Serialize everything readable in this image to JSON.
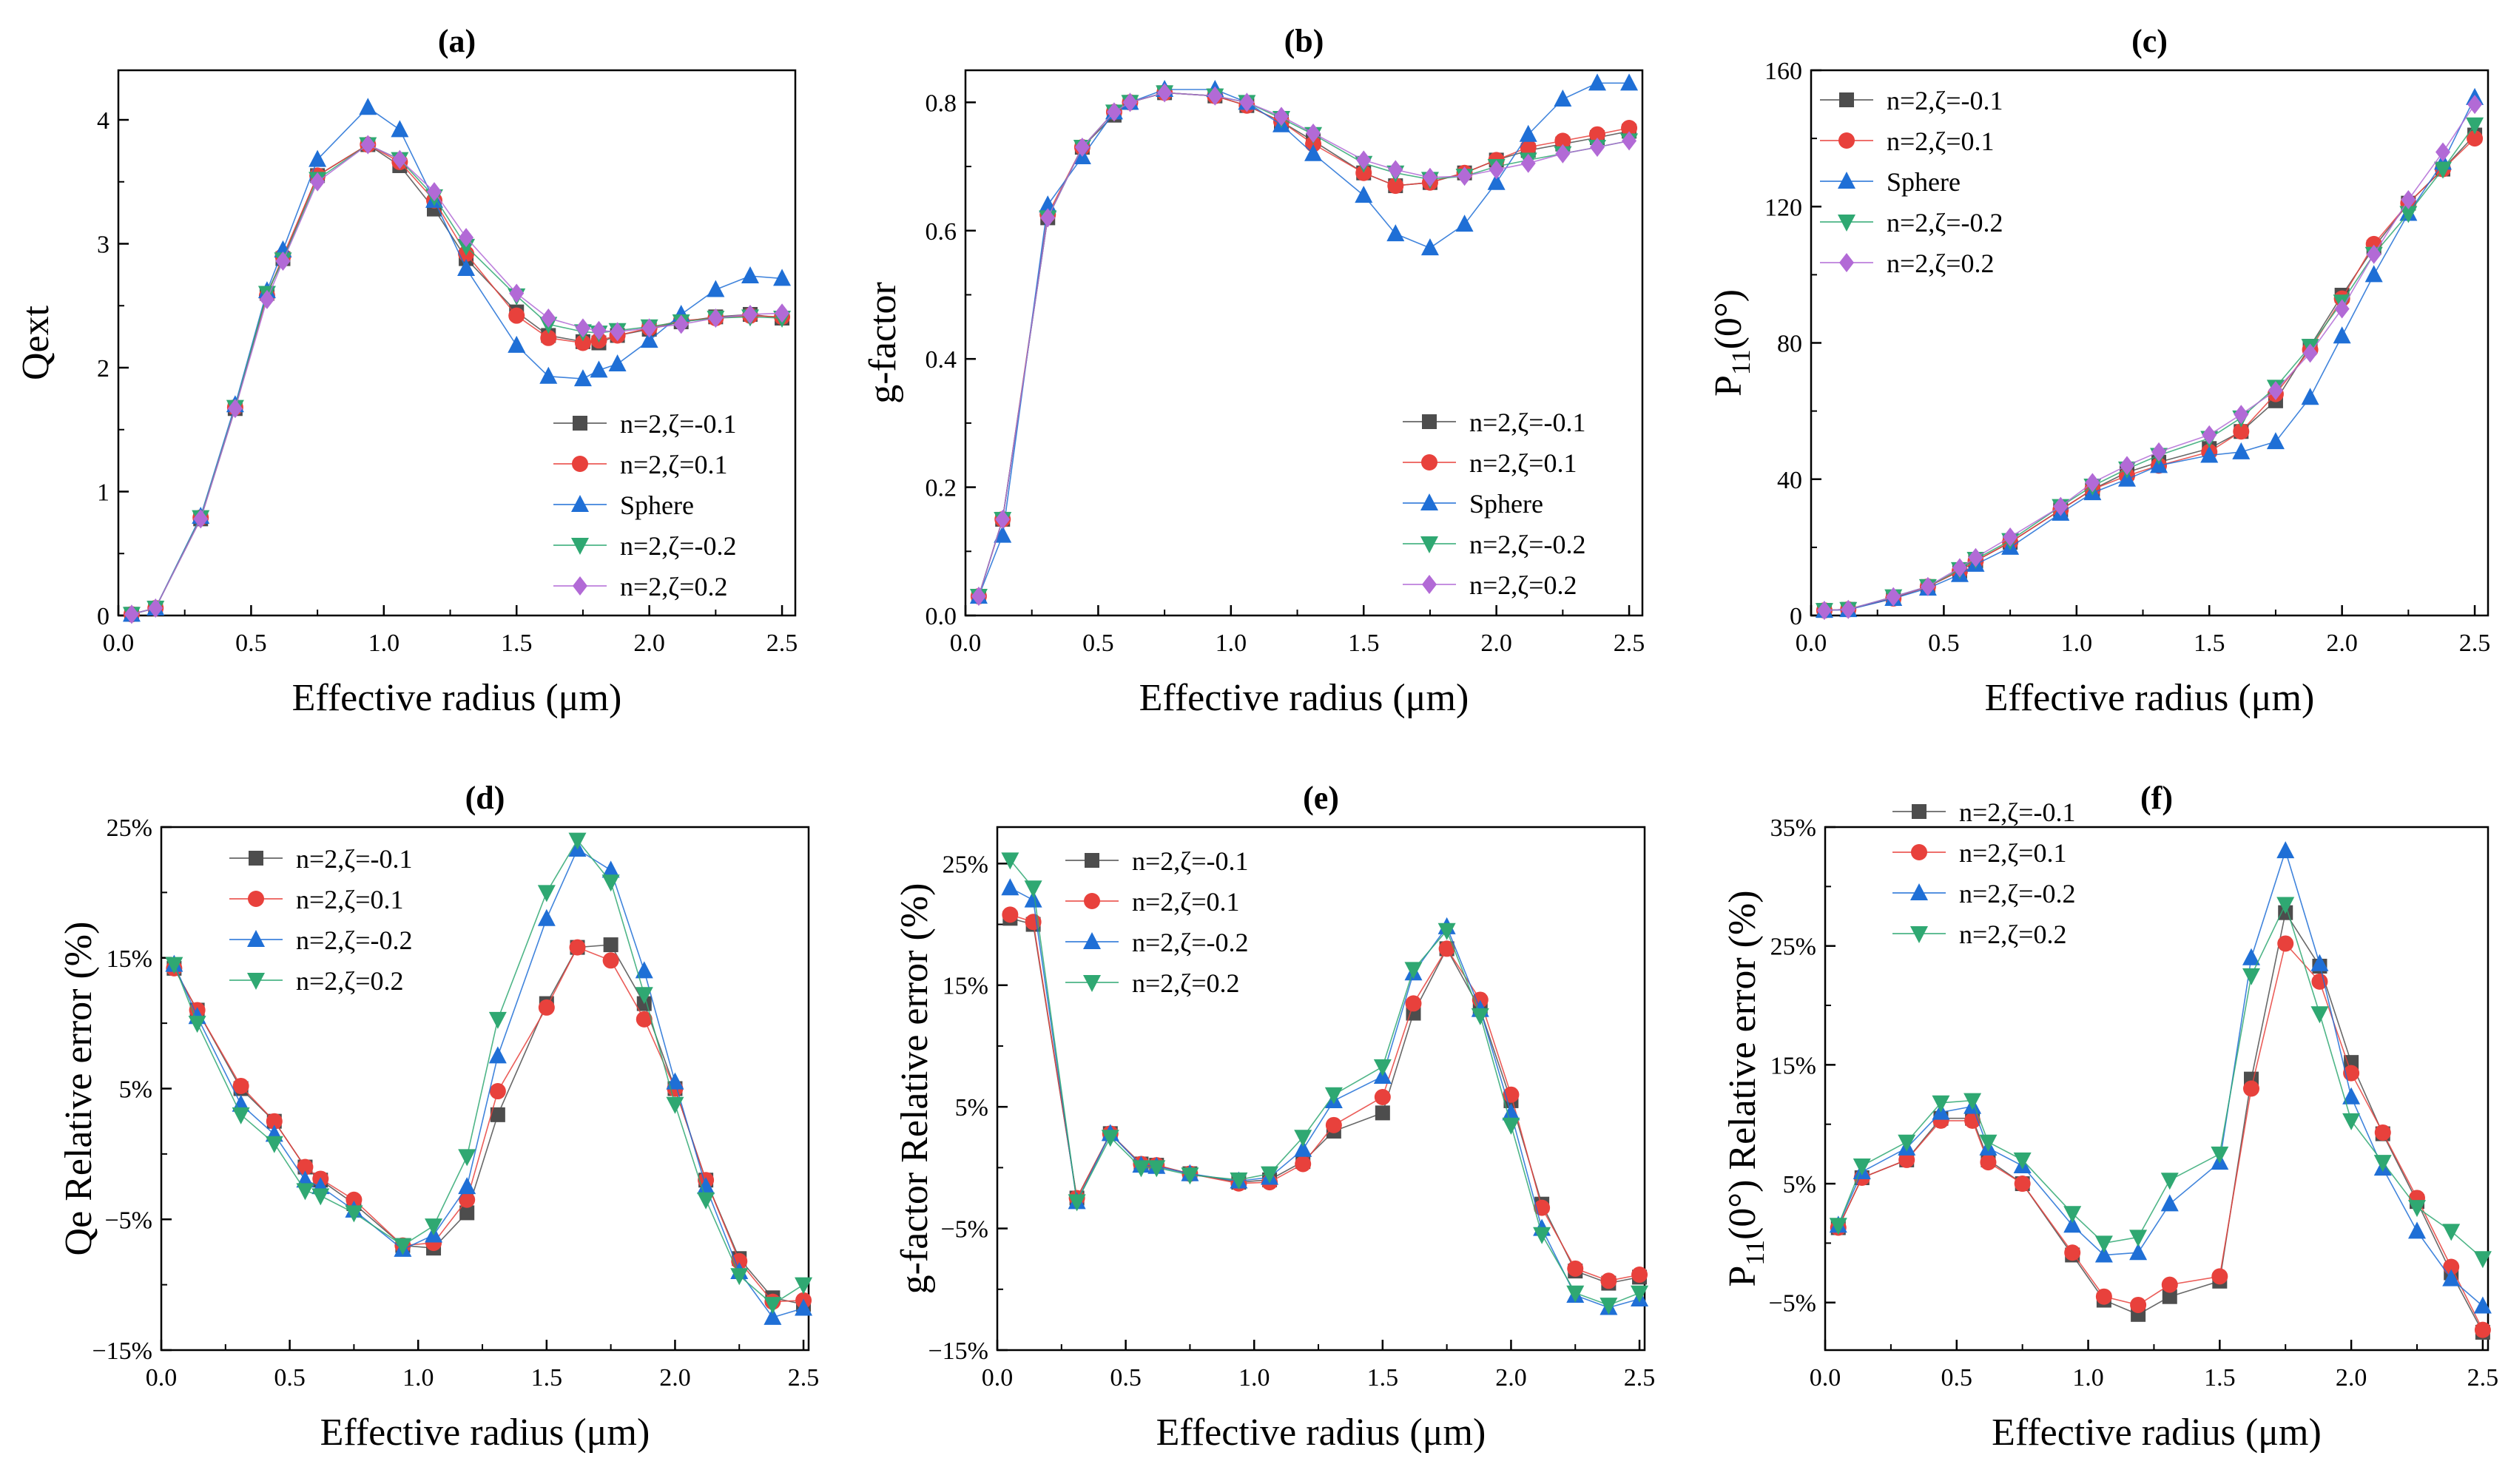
{
  "figure": {
    "description_labels": [
      "(a)",
      "(b)",
      "(c)",
      "(d)",
      "(e)",
      "(f)"
    ]
  },
  "chart_data": [
    {
      "id": "a",
      "type": "line",
      "title": "(a)",
      "xlabel": "Effective radius (μm)",
      "ylabel": "Qext",
      "ylabel_sub": "",
      "xlim": [
        0,
        2.55
      ],
      "ylim": [
        0,
        4.4
      ],
      "xticks": [
        0,
        0.5,
        1.0,
        1.5,
        2.0,
        2.5
      ],
      "xtick_labels": [
        "0.0",
        "0.5",
        "1.0",
        "1.5",
        "2.0",
        "2.5"
      ],
      "yticks": [
        0,
        1,
        2,
        3,
        4
      ],
      "ytick_labels": [
        "0",
        "1",
        "2",
        "3",
        "4"
      ],
      "legend": "bottom-right",
      "x": [
        0.05,
        0.14,
        0.31,
        0.44,
        0.56,
        0.62,
        0.75,
        0.94,
        1.06,
        1.19,
        1.31,
        1.5,
        1.62,
        1.75,
        1.81,
        1.88,
        2.0,
        2.12,
        2.25,
        2.38,
        2.5
      ],
      "series": [
        {
          "name": "n=2,ζ=-0.1",
          "color": "#4d4d4d",
          "marker": "square",
          "values": [
            0.01,
            0.06,
            0.78,
            1.67,
            2.6,
            2.88,
            3.55,
            3.8,
            3.63,
            3.28,
            2.88,
            2.45,
            2.26,
            2.21,
            2.2,
            2.26,
            2.31,
            2.37,
            2.41,
            2.43,
            2.4
          ]
        },
        {
          "name": "n=2,ζ=0.1",
          "color": "#e8413c",
          "marker": "circle",
          "values": [
            0.01,
            0.06,
            0.79,
            1.68,
            2.58,
            2.9,
            3.55,
            3.8,
            3.66,
            3.35,
            2.92,
            2.42,
            2.24,
            2.2,
            2.22,
            2.26,
            2.32,
            2.38,
            2.4,
            2.42,
            2.41
          ]
        },
        {
          "name": "Sphere",
          "color": "#1f6fd6",
          "marker": "triangle-up",
          "values": [
            0.01,
            0.06,
            0.8,
            1.7,
            2.62,
            2.95,
            3.68,
            4.1,
            3.92,
            3.35,
            2.8,
            2.18,
            1.93,
            1.91,
            1.98,
            2.03,
            2.22,
            2.43,
            2.63,
            2.74,
            2.72
          ]
        },
        {
          "name": "n=2,ζ=-0.2",
          "color": "#2fa872",
          "marker": "triangle-down",
          "values": [
            0.01,
            0.06,
            0.79,
            1.68,
            2.6,
            2.87,
            3.52,
            3.8,
            3.68,
            3.38,
            2.98,
            2.58,
            2.35,
            2.29,
            2.28,
            2.3,
            2.33,
            2.37,
            2.4,
            2.41,
            2.4
          ]
        },
        {
          "name": "n=2,ζ=0.2",
          "color": "#b26ad6",
          "marker": "diamond",
          "values": [
            0.01,
            0.06,
            0.78,
            1.67,
            2.55,
            2.86,
            3.5,
            3.8,
            3.68,
            3.42,
            3.05,
            2.6,
            2.4,
            2.32,
            2.3,
            2.29,
            2.32,
            2.35,
            2.4,
            2.43,
            2.44
          ]
        }
      ]
    },
    {
      "id": "b",
      "type": "line",
      "title": "(b)",
      "xlabel": "Effective radius (μm)",
      "ylabel": "g-factor",
      "ylabel_sub": "",
      "xlim": [
        0,
        2.55
      ],
      "ylim": [
        0,
        0.85
      ],
      "xticks": [
        0,
        0.5,
        1.0,
        1.5,
        2.0,
        2.5
      ],
      "xtick_labels": [
        "0.0",
        "0.5",
        "1.0",
        "1.5",
        "2.0",
        "2.5"
      ],
      "yticks": [
        0,
        0.2,
        0.4,
        0.6,
        0.8
      ],
      "ytick_labels": [
        "0.0",
        "0.2",
        "0.4",
        "0.6",
        "0.8"
      ],
      "legend": "bottom-right",
      "x": [
        0.05,
        0.14,
        0.31,
        0.44,
        0.56,
        0.62,
        0.75,
        0.94,
        1.06,
        1.19,
        1.31,
        1.5,
        1.62,
        1.75,
        1.88,
        2.0,
        2.12,
        2.25,
        2.38,
        2.5
      ],
      "series": [
        {
          "name": "n=2,ζ=-0.1",
          "color": "#4d4d4d",
          "marker": "square",
          "values": [
            0.03,
            0.15,
            0.62,
            0.73,
            0.78,
            0.8,
            0.815,
            0.81,
            0.795,
            0.77,
            0.74,
            0.69,
            0.67,
            0.675,
            0.69,
            0.71,
            0.725,
            0.735,
            0.745,
            0.755
          ]
        },
        {
          "name": "n=2,ζ=0.1",
          "color": "#e8413c",
          "marker": "circle",
          "values": [
            0.03,
            0.15,
            0.625,
            0.73,
            0.785,
            0.8,
            0.815,
            0.81,
            0.795,
            0.77,
            0.735,
            0.69,
            0.67,
            0.675,
            0.69,
            0.71,
            0.73,
            0.74,
            0.75,
            0.76
          ]
        },
        {
          "name": "Sphere",
          "color": "#1f6fd6",
          "marker": "triangle-up",
          "values": [
            0.03,
            0.125,
            0.64,
            0.715,
            0.785,
            0.8,
            0.82,
            0.82,
            0.8,
            0.765,
            0.72,
            0.655,
            0.595,
            0.573,
            0.61,
            0.675,
            0.75,
            0.805,
            0.83,
            0.83
          ]
        },
        {
          "name": "n=2,ζ=-0.2",
          "color": "#2fa872",
          "marker": "triangle-down",
          "values": [
            0.03,
            0.15,
            0.62,
            0.73,
            0.785,
            0.8,
            0.815,
            0.81,
            0.8,
            0.775,
            0.75,
            0.705,
            0.69,
            0.68,
            0.685,
            0.7,
            0.71,
            0.72,
            0.73,
            0.74
          ]
        },
        {
          "name": "n=2,ζ=0.2",
          "color": "#b26ad6",
          "marker": "diamond",
          "values": [
            0.03,
            0.15,
            0.62,
            0.73,
            0.785,
            0.8,
            0.815,
            0.81,
            0.8,
            0.778,
            0.752,
            0.71,
            0.695,
            0.683,
            0.685,
            0.695,
            0.705,
            0.72,
            0.73,
            0.74
          ]
        }
      ]
    },
    {
      "id": "c",
      "type": "line",
      "title": "(c)",
      "xlabel": "Effective radius (μm)",
      "ylabel": "P",
      "ylabel_sub": "11",
      "ylabel_suffix": "(0°)",
      "xlim": [
        0,
        2.55
      ],
      "ylim": [
        0,
        160
      ],
      "xticks": [
        0,
        0.5,
        1.0,
        1.5,
        2.0,
        2.5
      ],
      "xtick_labels": [
        "0.0",
        "0.5",
        "1.0",
        "1.5",
        "2.0",
        "2.5"
      ],
      "yticks": [
        0,
        40,
        80,
        120,
        160
      ],
      "ytick_labels": [
        "0",
        "40",
        "80",
        "120",
        "160"
      ],
      "legend": "top-left",
      "x": [
        0.05,
        0.14,
        0.31,
        0.44,
        0.56,
        0.62,
        0.75,
        0.94,
        1.06,
        1.19,
        1.31,
        1.5,
        1.62,
        1.75,
        1.88,
        2.0,
        2.12,
        2.25,
        2.38,
        2.5
      ],
      "series": [
        {
          "name": "n=2,ζ=-0.1",
          "color": "#4d4d4d",
          "marker": "square",
          "values": [
            1.5,
            1.8,
            5,
            8.5,
            13,
            16,
            21.5,
            31,
            37,
            42,
            45,
            49,
            54,
            63,
            79,
            94,
            108,
            121,
            131,
            141
          ]
        },
        {
          "name": "n=2,ζ=0.1",
          "color": "#e8413c",
          "marker": "circle",
          "values": [
            1.5,
            1.8,
            5,
            8.5,
            13,
            16,
            21.5,
            31,
            37,
            41,
            44,
            48,
            54,
            65,
            78,
            93,
            109,
            121,
            131,
            140
          ]
        },
        {
          "name": "Sphere",
          "color": "#1f6fd6",
          "marker": "triangle-up",
          "values": [
            1.5,
            1.7,
            5,
            8,
            12,
            15,
            20,
            30,
            36,
            40,
            44,
            47,
            48,
            51,
            64,
            82,
            100,
            118,
            133,
            152
          ]
        },
        {
          "name": "n=2,ζ=-0.2",
          "color": "#2fa872",
          "marker": "triangle-down",
          "values": [
            1.5,
            1.8,
            5.5,
            8.5,
            13.5,
            16.5,
            22,
            32,
            38,
            43,
            47,
            52,
            58,
            67,
            79,
            92,
            106,
            118,
            131,
            144
          ]
        },
        {
          "name": "n=2,ζ=0.2",
          "color": "#b26ad6",
          "marker": "diamond",
          "values": [
            1.5,
            1.8,
            5.5,
            8.5,
            14,
            17,
            23,
            32,
            39,
            44,
            48,
            53,
            59,
            66,
            77,
            90,
            106,
            122,
            136,
            150
          ]
        }
      ]
    },
    {
      "id": "d",
      "type": "line",
      "title": "(d)",
      "xlabel": "Effective radius (μm)",
      "ylabel": "Qe Relative error (%)",
      "ylabel_sub": "",
      "xlim": [
        0,
        2.52
      ],
      "ylim": [
        -15,
        25
      ],
      "xticks": [
        0,
        0.5,
        1.0,
        1.5,
        2.0,
        2.5
      ],
      "xtick_labels": [
        "0.0",
        "0.5",
        "1.0",
        "1.5",
        "2.0",
        "2.5"
      ],
      "yticks": [
        -15,
        -5,
        5,
        15,
        25
      ],
      "ytick_labels": [
        "−15%",
        "−5%",
        "5%",
        "15%",
        "25%"
      ],
      "legend": "top-left",
      "x": [
        0.05,
        0.14,
        0.31,
        0.44,
        0.56,
        0.62,
        0.75,
        0.94,
        1.06,
        1.19,
        1.31,
        1.5,
        1.62,
        1.75,
        1.88,
        2.0,
        2.12,
        2.25,
        2.38,
        2.5
      ],
      "series": [
        {
          "name": "n=2,ζ=-0.1",
          "color": "#4d4d4d",
          "marker": "square",
          "values": [
            14.2,
            11,
            5,
            2.5,
            -1,
            -2,
            -3.8,
            -7,
            -7.2,
            -4.5,
            3,
            11.5,
            15.8,
            16,
            11.5,
            5,
            -2,
            -8,
            -11,
            -11.5
          ]
        },
        {
          "name": "n=2,ζ=0.1",
          "color": "#e8413c",
          "marker": "circle",
          "values": [
            14.2,
            11,
            5.2,
            2.5,
            -1,
            -1.9,
            -3.5,
            -7,
            -6.8,
            -3.5,
            4.8,
            11.2,
            15.8,
            14.8,
            10.3,
            5,
            -2,
            -8.2,
            -11.3,
            -11.2
          ]
        },
        {
          "name": "n=2,ζ=-0.2",
          "color": "#1f6fd6",
          "marker": "triangle-up",
          "values": [
            14.5,
            10.5,
            3.8,
            1.5,
            -2,
            -2.5,
            -4.3,
            -7.3,
            -6.2,
            -2.5,
            7.5,
            18,
            23.3,
            21.7,
            14,
            5.5,
            -2.5,
            -9,
            -12.5,
            -11.8
          ]
        },
        {
          "name": "n=2,ζ=0.2",
          "color": "#2fa872",
          "marker": "triangle-down",
          "values": [
            14.5,
            10,
            3,
            0.8,
            -2.8,
            -3.2,
            -4.5,
            -7,
            -5.5,
            -0.2,
            10.3,
            20,
            24,
            20.8,
            12.2,
            3.8,
            -3.5,
            -9.3,
            -11.5,
            -10
          ]
        }
      ]
    },
    {
      "id": "e",
      "type": "line",
      "title": "(e)",
      "xlabel": "Effective radius (μm)",
      "ylabel": "g-factor Relative error (%)",
      "ylabel_sub": "",
      "xlim": [
        0,
        2.52
      ],
      "ylim": [
        -15,
        28
      ],
      "xticks": [
        0,
        0.5,
        1.0,
        1.5,
        2.0,
        2.5
      ],
      "xtick_labels": [
        "0.0",
        "0.5",
        "1.0",
        "1.5",
        "2.0",
        "2.5"
      ],
      "yticks": [
        -15,
        -5,
        5,
        15,
        25
      ],
      "ytick_labels": [
        "−15%",
        "−5%",
        "5%",
        "15%",
        "25%"
      ],
      "legend": "top-right",
      "x": [
        0.05,
        0.14,
        0.31,
        0.44,
        0.56,
        0.62,
        0.75,
        0.94,
        1.06,
        1.19,
        1.31,
        1.5,
        1.62,
        1.75,
        1.88,
        2.0,
        2.12,
        2.25,
        2.38,
        2.5
      ],
      "series": [
        {
          "name": "n=2,ζ=-0.1",
          "color": "#4d4d4d",
          "marker": "square",
          "values": [
            20.5,
            20,
            -2.5,
            2.8,
            0.3,
            0.2,
            -0.5,
            -1.2,
            -1,
            0.5,
            3,
            4.5,
            12.7,
            18,
            13,
            5.5,
            -3,
            -8.5,
            -9.5,
            -9
          ]
        },
        {
          "name": "n=2,ζ=0.1",
          "color": "#e8413c",
          "marker": "circle",
          "values": [
            20.8,
            20.2,
            -2.5,
            2.8,
            0.3,
            0.2,
            -0.5,
            -1.3,
            -1.2,
            0.3,
            3.5,
            5.8,
            13.5,
            18,
            13.8,
            6,
            -3.3,
            -8.3,
            -9.3,
            -8.8
          ]
        },
        {
          "name": "n=2,ζ=-0.2",
          "color": "#1f6fd6",
          "marker": "triangle-up",
          "values": [
            23,
            22,
            -2.8,
            2.8,
            0.2,
            0.1,
            -0.5,
            -1.1,
            -0.8,
            1.5,
            5.5,
            7.5,
            16,
            19.8,
            13,
            4.5,
            -5,
            -10.5,
            -11.5,
            -10.8
          ]
        },
        {
          "name": "n=2,ζ=0.2",
          "color": "#2fa872",
          "marker": "triangle-down",
          "values": [
            25.3,
            23,
            -2.8,
            2.5,
            0,
            0,
            -0.6,
            -1,
            -0.5,
            2.5,
            6,
            8.3,
            16.3,
            19.5,
            12.5,
            3.5,
            -5.5,
            -10.3,
            -11.3,
            -10.3
          ]
        }
      ]
    },
    {
      "id": "f",
      "type": "line",
      "title": "(f)",
      "xlabel": "Effective radius (μm)",
      "ylabel": "P",
      "ylabel_sub": "11",
      "ylabel_suffix": "(0°) Relative error (%)",
      "xlim": [
        0,
        2.52
      ],
      "ylim": [
        -9,
        35
      ],
      "xticks": [
        0,
        0.5,
        1.0,
        1.5,
        2.0,
        2.5
      ],
      "xtick_labels": [
        "0.0",
        "0.5",
        "1.0",
        "1.5",
        "2.0",
        "2.5"
      ],
      "yticks": [
        -5,
        5,
        15,
        25,
        35
      ],
      "ytick_labels": [
        "−5%",
        "5%",
        "15%",
        "25%",
        "35%"
      ],
      "legend": "top-left",
      "x": [
        0.05,
        0.14,
        0.31,
        0.44,
        0.56,
        0.62,
        0.75,
        0.94,
        1.06,
        1.19,
        1.31,
        1.5,
        1.62,
        1.75,
        1.88,
        2.0,
        2.12,
        2.25,
        2.38,
        2.5
      ],
      "series": [
        {
          "name": "n=2,ζ=-0.1",
          "color": "#4d4d4d",
          "marker": "square",
          "values": [
            1.3,
            5.5,
            7,
            10.5,
            10.5,
            7,
            5,
            -1,
            -4.8,
            -6,
            -4.5,
            -3.2,
            13.8,
            27.8,
            23.3,
            15.2,
            9.2,
            3.5,
            -2.5,
            -7.5
          ]
        },
        {
          "name": "n=2,ζ=0.1",
          "color": "#e8413c",
          "marker": "circle",
          "values": [
            1.3,
            5.5,
            7,
            10.3,
            10.3,
            6.8,
            5,
            -0.8,
            -4.5,
            -5.2,
            -3.5,
            -2.8,
            13,
            25.2,
            22,
            14.3,
            9.3,
            3.8,
            -2,
            -7.3
          ]
        },
        {
          "name": "n=2,ζ=-0.2",
          "color": "#1f6fd6",
          "marker": "triangle-up",
          "values": [
            1.5,
            6,
            8,
            11,
            11.5,
            8,
            6.5,
            1.5,
            -1,
            -0.8,
            3.3,
            6.8,
            24,
            33,
            23.5,
            12.3,
            6.3,
            1,
            -3,
            -5.3
          ]
        },
        {
          "name": "n=2,ζ=0.2",
          "color": "#2fa872",
          "marker": "triangle-down",
          "values": [
            1.5,
            6.5,
            8.5,
            11.8,
            12,
            8.5,
            7,
            2.5,
            0,
            0.5,
            5.3,
            7.5,
            22.5,
            28.5,
            19.3,
            10.3,
            6.8,
            3,
            1,
            -1.3
          ]
        }
      ]
    }
  ]
}
